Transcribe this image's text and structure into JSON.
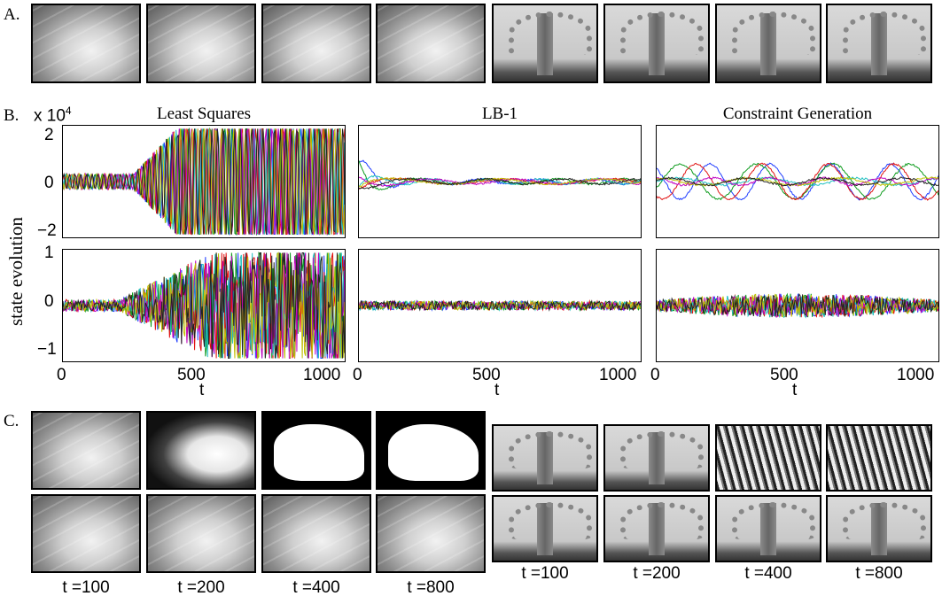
{
  "labels": {
    "a": "A.",
    "b": "B.",
    "c": "C."
  },
  "plot": {
    "titles": [
      "Least Squares",
      "LB-1",
      "Constraint Generation"
    ],
    "ylabel": "state evolution",
    "scale_prefix": "x 10",
    "scale_exp": "4",
    "top_yticks": [
      "2",
      "0",
      "−2"
    ],
    "bottom_yticks": [
      "1",
      "0",
      "−1"
    ],
    "xticks": [
      "0",
      "500",
      "1000"
    ],
    "xlabel": "t",
    "colors": [
      "#1f3cff",
      "#0a9a1a",
      "#e01010",
      "#20c0c0",
      "#c000c0",
      "#c0c000",
      "#222222"
    ]
  },
  "times": [
    "t =100",
    "t =200",
    "t =400",
    "t =800"
  ],
  "chart_data": [
    {
      "type": "line",
      "title": "Least Squares",
      "ylim": [
        -20000,
        20000
      ],
      "xlim": [
        0,
        1050
      ],
      "ylabel": "state evolution",
      "behavior": "diverges after t≈300"
    },
    {
      "type": "line",
      "title": "LB-1",
      "ylim": [
        -20000,
        20000
      ],
      "xlim": [
        0,
        1050
      ],
      "behavior": "decays to ~0"
    },
    {
      "type": "line",
      "title": "Constraint Generation",
      "ylim": [
        -20000,
        20000
      ],
      "xlim": [
        0,
        1050
      ],
      "behavior": "bounded oscillation"
    },
    {
      "type": "line",
      "ylim": [
        -1,
        1
      ],
      "xlim": [
        0,
        1050
      ],
      "xlabel": "t",
      "behavior": "diverges after t≈400"
    },
    {
      "type": "line",
      "ylim": [
        -1,
        1
      ],
      "xlim": [
        0,
        1050
      ],
      "xlabel": "t",
      "behavior": "small noise"
    },
    {
      "type": "line",
      "ylim": [
        -1,
        1
      ],
      "xlim": [
        0,
        1050
      ],
      "xlabel": "t",
      "behavior": "moderate noise"
    }
  ]
}
